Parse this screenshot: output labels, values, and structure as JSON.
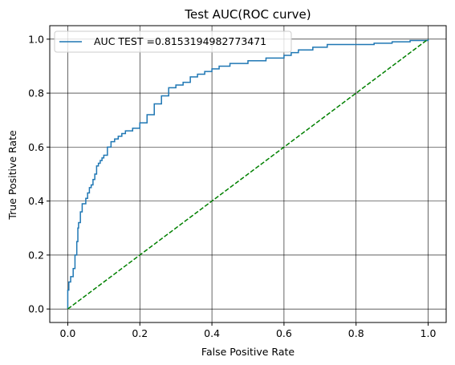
{
  "chart_data": {
    "type": "line",
    "title": "Test AUC(ROC curve)",
    "xlabel": "False Positive Rate",
    "ylabel": "True Positive Rate",
    "xlim": [
      -0.05,
      1.05
    ],
    "ylim": [
      -0.05,
      1.05
    ],
    "xticks": [
      0.0,
      0.2,
      0.4,
      0.6,
      0.8,
      1.0
    ],
    "yticks": [
      0.0,
      0.2,
      0.4,
      0.6,
      0.8,
      1.0
    ],
    "xtick_labels": [
      "0.0",
      "0.2",
      "0.4",
      "0.6",
      "0.8",
      "1.0"
    ],
    "ytick_labels": [
      "0.0",
      "0.2",
      "0.4",
      "0.6",
      "0.8",
      "1.0"
    ],
    "grid": true,
    "legend_position": "top-left",
    "series": [
      {
        "name": "AUC TEST =0.8153194982773471",
        "color": "#1f77b4",
        "style": "step",
        "x": [
          0.0,
          0.0,
          0.003,
          0.003,
          0.008,
          0.008,
          0.015,
          0.015,
          0.02,
          0.02,
          0.025,
          0.028,
          0.03,
          0.035,
          0.04,
          0.045,
          0.05,
          0.055,
          0.06,
          0.065,
          0.07,
          0.075,
          0.08,
          0.085,
          0.09,
          0.095,
          0.1,
          0.11,
          0.12,
          0.13,
          0.14,
          0.15,
          0.16,
          0.18,
          0.2,
          0.22,
          0.24,
          0.26,
          0.28,
          0.3,
          0.32,
          0.34,
          0.36,
          0.38,
          0.4,
          0.42,
          0.45,
          0.5,
          0.55,
          0.6,
          0.62,
          0.64,
          0.66,
          0.68,
          0.7,
          0.72,
          0.75,
          0.8,
          0.85,
          0.9,
          0.95,
          1.0
        ],
        "y": [
          0.0,
          0.07,
          0.07,
          0.1,
          0.1,
          0.12,
          0.12,
          0.15,
          0.15,
          0.2,
          0.25,
          0.3,
          0.32,
          0.36,
          0.39,
          0.39,
          0.41,
          0.43,
          0.45,
          0.46,
          0.48,
          0.5,
          0.53,
          0.54,
          0.55,
          0.56,
          0.57,
          0.6,
          0.62,
          0.63,
          0.64,
          0.65,
          0.66,
          0.67,
          0.69,
          0.72,
          0.76,
          0.79,
          0.82,
          0.83,
          0.84,
          0.86,
          0.87,
          0.88,
          0.89,
          0.9,
          0.91,
          0.92,
          0.93,
          0.94,
          0.95,
          0.96,
          0.96,
          0.97,
          0.97,
          0.98,
          0.98,
          0.98,
          0.985,
          0.99,
          0.995,
          1.0
        ]
      },
      {
        "name": "",
        "color": "#008000",
        "style": "dashed",
        "x": [
          0.0,
          1.0
        ],
        "y": [
          0.0,
          1.0
        ]
      }
    ]
  }
}
